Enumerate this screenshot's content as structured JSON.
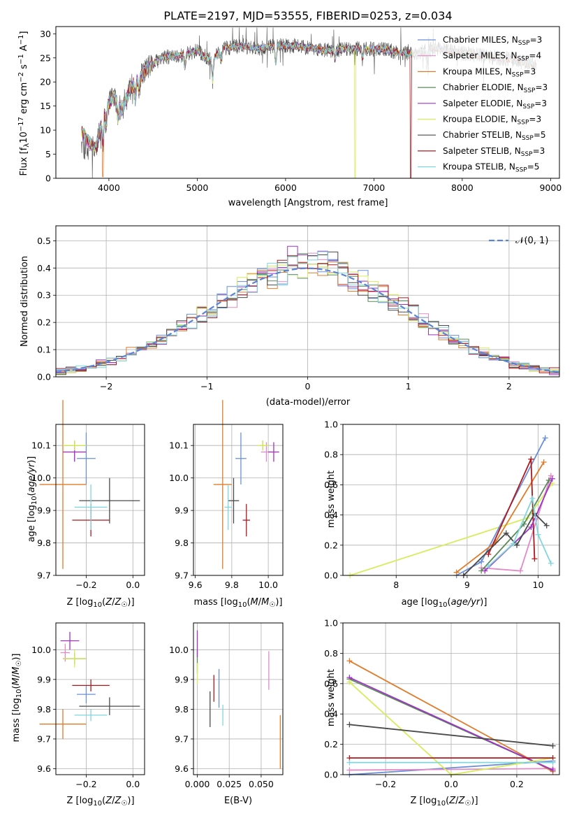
{
  "figure": {
    "title": "PLATE=2197, MJD=53555, FIBERID=0253, z=0.034"
  },
  "models": [
    {
      "name": "Chabrier MILES",
      "n_ssp": 3,
      "color": "#6a8fd8"
    },
    {
      "name": "Salpeter MILES",
      "n_ssp": 4,
      "color": "#e28ac6"
    },
    {
      "name": "Kroupa MILES",
      "n_ssp": 3,
      "color": "#e07b2a"
    },
    {
      "name": "Chabrier ELODIE",
      "n_ssp": 3,
      "color": "#5b8a5a"
    },
    {
      "name": "Salpeter ELODIE",
      "n_ssp": 3,
      "color": "#a032c8"
    },
    {
      "name": "Kroupa ELODIE",
      "n_ssp": 3,
      "color": "#d7ec5a"
    },
    {
      "name": "Chabrier STELIB",
      "n_ssp": 5,
      "color": "#4a4a4a"
    },
    {
      "name": "Salpeter STELIB",
      "n_ssp": 3,
      "color": "#b0181e"
    },
    {
      "name": "Kroupa STELIB",
      "n_ssp": 5,
      "color": "#7fd6dc"
    }
  ],
  "chart_data": [
    {
      "id": "spectrum",
      "type": "line",
      "title": "PLATE=2197, MJD=53555, FIBERID=0253, z=0.034",
      "xlabel": "wavelength [Angstrom, rest frame]",
      "ylabel": "Flux [f_λ 10^-17 erg cm^-2 s^-1 A^-1]",
      "xlim": [
        3400,
        9100
      ],
      "ylim": [
        0,
        31.5
      ],
      "xticks": [
        4000,
        5000,
        6000,
        7000,
        8000,
        9000
      ],
      "yticks": [
        0,
        5,
        10,
        15,
        20,
        25,
        30
      ],
      "legend": "upper right",
      "anchors": [
        [
          3690,
          10
        ],
        [
          3750,
          8
        ],
        [
          3850,
          6
        ],
        [
          3950,
          14
        ],
        [
          4050,
          17
        ],
        [
          4150,
          14
        ],
        [
          4250,
          19
        ],
        [
          4350,
          21
        ],
        [
          4450,
          23
        ],
        [
          4600,
          25
        ],
        [
          4800,
          25.5
        ],
        [
          5000,
          26.5
        ],
        [
          5150,
          24.5
        ],
        [
          5300,
          27
        ],
        [
          5500,
          27.5
        ],
        [
          5700,
          27
        ],
        [
          5900,
          27.5
        ],
        [
          6100,
          27.5
        ],
        [
          6300,
          27
        ],
        [
          6500,
          26.5
        ],
        [
          6700,
          27
        ],
        [
          6900,
          26.8
        ],
        [
          7100,
          26.8
        ],
        [
          7300,
          26
        ],
        [
          7500,
          26
        ],
        [
          7700,
          27
        ],
        [
          8000,
          26
        ],
        [
          8200,
          25.5
        ],
        [
          8400,
          25
        ],
        [
          8600,
          24.5
        ],
        [
          8840,
          23.5
        ]
      ],
      "dips": [
        {
          "model": "Kroupa ELODIE",
          "x": 6790,
          "y": 0
        },
        {
          "model": "Salpeter STELIB",
          "x": 7420,
          "y": 0
        },
        {
          "model": "Kroupa MILES",
          "x": 3930,
          "y": 0.3
        }
      ]
    },
    {
      "id": "residuals",
      "type": "histogram",
      "xlabel": "(data-model)/error",
      "ylabel": "Normed distribution",
      "xlim": [
        -2.5,
        2.5
      ],
      "ylim": [
        0,
        0.555
      ],
      "xticks": [
        -2,
        -1,
        0,
        1,
        2
      ],
      "yticks": [
        0,
        0.1,
        0.2,
        0.3,
        0.4,
        0.5
      ],
      "bin_width": 0.1,
      "legend": "upper right",
      "reference": {
        "label": "𝒩(0, 1)",
        "color": "#5b84d6",
        "mean": 0,
        "sigma": 1
      }
    },
    {
      "id": "age-vs-Z",
      "type": "errorbar",
      "xlabel": "Z [log10(Z/Z☉)]",
      "ylabel": "age [log10(age/yr)]",
      "xlim": [
        -0.33,
        0.05
      ],
      "ylim": [
        9.7,
        10.165
      ],
      "xticks": [
        -0.2,
        0.0
      ],
      "yticks": [
        9.7,
        9.8,
        9.9,
        10.0,
        10.1
      ],
      "points": [
        {
          "model": "Chabrier MILES",
          "x": -0.2,
          "xerr": 0.04,
          "y": 10.06,
          "yerr": 0.08
        },
        {
          "model": "Salpeter MILES",
          "x": -0.25,
          "xerr": 0.05,
          "y": 10.08,
          "yerr": 0.03
        },
        {
          "model": "Kroupa MILES",
          "x": -0.3,
          "xerr": 0.1,
          "y": 9.98,
          "yerr": 0.26
        },
        {
          "model": "Chabrier ELODIE",
          "x": -0.25,
          "xerr": 0.05,
          "y": 10.1,
          "yerr": 0.015
        },
        {
          "model": "Salpeter ELODIE",
          "x": -0.25,
          "xerr": 0.05,
          "y": 10.08,
          "yerr": 0.03
        },
        {
          "model": "Kroupa ELODIE",
          "x": -0.25,
          "xerr": 0.05,
          "y": 10.1,
          "yerr": 0.015
        },
        {
          "model": "Chabrier STELIB",
          "x": -0.1,
          "xerr": 0.13,
          "y": 9.93,
          "yerr": 0.07
        },
        {
          "model": "Salpeter STELIB",
          "x": -0.18,
          "xerr": 0.08,
          "y": 9.87,
          "yerr": 0.05
        },
        {
          "model": "Kroupa STELIB",
          "x": -0.18,
          "xerr": 0.07,
          "y": 9.91,
          "yerr": 0.07
        }
      ]
    },
    {
      "id": "age-vs-mass",
      "type": "errorbar",
      "xlabel": "mass [log10(M/M☉)]",
      "ylabel": "",
      "xlim": [
        9.59,
        10.08
      ],
      "ylim": [
        9.7,
        10.165
      ],
      "xticks": [
        9.6,
        9.8,
        10.0
      ],
      "yticks": [
        9.7,
        9.8,
        9.9,
        10.0,
        10.1
      ],
      "points": [
        {
          "model": "Chabrier MILES",
          "x": 9.85,
          "xerr": 0.03,
          "y": 10.06,
          "yerr": 0.08
        },
        {
          "model": "Salpeter MILES",
          "x": 9.99,
          "xerr": 0.03,
          "y": 10.08,
          "yerr": 0.03
        },
        {
          "model": "Kroupa MILES",
          "x": 9.75,
          "xerr": 0.05,
          "y": 9.98,
          "yerr": 0.26
        },
        {
          "model": "Chabrier ELODIE",
          "x": 9.97,
          "xerr": 0.02,
          "y": 10.1,
          "yerr": 0.015
        },
        {
          "model": "Salpeter ELODIE",
          "x": 10.03,
          "xerr": 0.03,
          "y": 10.08,
          "yerr": 0.03
        },
        {
          "model": "Kroupa ELODIE",
          "x": 9.97,
          "xerr": 0.03,
          "y": 10.1,
          "yerr": 0.015
        },
        {
          "model": "Chabrier STELIB",
          "x": 9.81,
          "xerr": 0.03,
          "y": 9.93,
          "yerr": 0.07
        },
        {
          "model": "Salpeter STELIB",
          "x": 9.88,
          "xerr": 0.02,
          "y": 9.87,
          "yerr": 0.05
        },
        {
          "model": "Kroupa STELIB",
          "x": 9.78,
          "xerr": 0.02,
          "y": 9.91,
          "yerr": 0.07
        }
      ]
    },
    {
      "id": "weight-vs-age",
      "type": "line",
      "xlabel": "age [log10(age/yr)]",
      "ylabel": "mass weight",
      "xlim": [
        7.25,
        10.3
      ],
      "ylim": [
        0,
        1.0
      ],
      "xticks": [
        8,
        9,
        10
      ],
      "yticks": [
        0,
        0.2,
        0.4,
        0.6,
        0.8,
        1.0
      ],
      "series": [
        {
          "model": "Kroupa ELODIE",
          "x": [
            7.35,
            9.85,
            10.2
          ],
          "y": [
            0.0,
            0.38,
            0.61
          ]
        },
        {
          "model": "Chabrier MILES",
          "x": [
            8.85,
            9.2,
            10.1
          ],
          "y": [
            0.0,
            0.09,
            0.91
          ]
        },
        {
          "model": "Kroupa MILES",
          "x": [
            8.85,
            9.4,
            10.08
          ],
          "y": [
            0.02,
            0.22,
            0.75
          ]
        },
        {
          "model": "Salpeter MILES",
          "x": [
            9.2,
            9.75,
            10.18
          ],
          "y": [
            0.05,
            0.03,
            0.66
          ]
        },
        {
          "model": "Salpeter STELIB",
          "x": [
            9.3,
            9.9,
            9.95
          ],
          "y": [
            0.14,
            0.77,
            0.11
          ]
        },
        {
          "model": "Chabrier ELODIE",
          "x": [
            9.2,
            9.8,
            10.15
          ],
          "y": [
            0.03,
            0.34,
            0.63
          ]
        },
        {
          "model": "Salpeter ELODIE",
          "x": [
            9.25,
            9.9,
            10.2
          ],
          "y": [
            0.03,
            0.32,
            0.64
          ]
        },
        {
          "model": "Chabrier STELIB",
          "x": [
            8.95,
            9.55,
            9.7,
            9.95,
            10.12
          ],
          "y": [
            0.0,
            0.28,
            0.2,
            0.41,
            0.33
          ]
        },
        {
          "model": "Kroupa STELIB",
          "x": [
            9.3,
            9.65,
            9.92,
            10.0,
            10.18
          ],
          "y": [
            0.06,
            0.21,
            0.51,
            0.27,
            0.08
          ]
        }
      ]
    },
    {
      "id": "mass-vs-Z",
      "type": "errorbar",
      "xlabel": "Z [log10(Z/Z☉)]",
      "ylabel": "mass [log10(M/M☉)]",
      "xlim": [
        -0.33,
        0.05
      ],
      "ylim": [
        9.58,
        10.09
      ],
      "xticks": [
        -0.2,
        0.0
      ],
      "yticks": [
        9.6,
        9.7,
        9.8,
        9.9,
        10.0
      ],
      "points": [
        {
          "model": "Chabrier MILES",
          "x": -0.2,
          "xerr": 0.04,
          "y": 9.85,
          "yerr": 0.03
        },
        {
          "model": "Salpeter MILES",
          "x": -0.29,
          "xerr": 0.02,
          "y": 9.99,
          "yerr": 0.03
        },
        {
          "model": "Kroupa MILES",
          "x": -0.3,
          "xerr": 0.1,
          "y": 9.75,
          "yerr": 0.05
        },
        {
          "model": "Chabrier ELODIE",
          "x": -0.25,
          "xerr": 0.05,
          "y": 9.97,
          "yerr": 0.02
        },
        {
          "model": "Salpeter ELODIE",
          "x": -0.27,
          "xerr": 0.04,
          "y": 10.03,
          "yerr": 0.03
        },
        {
          "model": "Kroupa ELODIE",
          "x": -0.25,
          "xerr": 0.05,
          "y": 9.97,
          "yerr": 0.03
        },
        {
          "model": "Chabrier STELIB",
          "x": -0.1,
          "xerr": 0.13,
          "y": 9.81,
          "yerr": 0.03
        },
        {
          "model": "Salpeter STELIB",
          "x": -0.18,
          "xerr": 0.08,
          "y": 9.88,
          "yerr": 0.02
        },
        {
          "model": "Kroupa STELIB",
          "x": -0.18,
          "xerr": 0.07,
          "y": 9.78,
          "yerr": 0.02
        }
      ]
    },
    {
      "id": "mass-vs-ebv",
      "type": "errorbar",
      "xlabel": "E(B-V)",
      "ylabel": "",
      "xlim": [
        -0.003,
        0.067
      ],
      "ylim": [
        9.58,
        10.09
      ],
      "xticks": [
        0.0,
        0.025,
        0.05
      ],
      "xtick_labels": [
        "0.000",
        "0.025",
        "0.050"
      ],
      "yticks": [
        9.6,
        9.7,
        9.8,
        9.9,
        10.0
      ],
      "points": [
        {
          "model": "Chabrier MILES",
          "x": 0.017,
          "xerr": 0.0,
          "y": 9.87,
          "yerr": 0.065
        },
        {
          "model": "Salpeter MILES",
          "x": 0.056,
          "xerr": 0.0,
          "y": 9.93,
          "yerr": 0.065
        },
        {
          "model": "Kroupa MILES",
          "x": 0.065,
          "xerr": 0.0,
          "y": 9.69,
          "yerr": 0.09
        },
        {
          "model": "Chabrier ELODIE",
          "x": 0.0,
          "xerr": 0.0,
          "y": 9.96,
          "yerr": 0.04
        },
        {
          "model": "Salpeter ELODIE",
          "x": 0.0,
          "xerr": 0.0,
          "y": 10.02,
          "yerr": 0.045
        },
        {
          "model": "Kroupa ELODIE",
          "x": 0.0,
          "xerr": 0.0,
          "y": 9.92,
          "yerr": 0.035
        },
        {
          "model": "Chabrier STELIB",
          "x": 0.01,
          "xerr": 0.0,
          "y": 9.8,
          "yerr": 0.06
        },
        {
          "model": "Salpeter STELIB",
          "x": 0.013,
          "xerr": 0.0,
          "y": 9.87,
          "yerr": 0.045
        },
        {
          "model": "Kroupa STELIB",
          "x": 0.02,
          "xerr": 0.0,
          "y": 9.78,
          "yerr": 0.035
        }
      ]
    },
    {
      "id": "weight-vs-Z",
      "type": "line",
      "xlabel": "Z [log10(Z/Z☉)]",
      "ylabel": "mass weight",
      "xlim": [
        -0.33,
        0.33
      ],
      "ylim": [
        0,
        1.0
      ],
      "xticks": [
        -0.2,
        0.0,
        0.2
      ],
      "yticks": [
        0,
        0.2,
        0.4,
        0.6,
        0.8,
        1.0
      ],
      "series": [
        {
          "model": "Chabrier MILES",
          "x": [
            -0.31,
            0.31
          ],
          "y": [
            0.0,
            0.09
          ]
        },
        {
          "model": "Salpeter MILES",
          "x": [
            -0.31,
            0.31
          ],
          "y": [
            0.03,
            0.04
          ]
        },
        {
          "model": "Kroupa MILES",
          "x": [
            -0.31,
            0.31
          ],
          "y": [
            0.75,
            0.02
          ]
        },
        {
          "model": "Chabrier ELODIE",
          "x": [
            -0.31,
            0.31
          ],
          "y": [
            0.63,
            0.03
          ]
        },
        {
          "model": "Salpeter ELODIE",
          "x": [
            -0.31,
            0.31
          ],
          "y": [
            0.64,
            0.03
          ]
        },
        {
          "model": "Kroupa ELODIE",
          "x": [
            -0.31,
            0.0,
            0.31
          ],
          "y": [
            0.61,
            0.0,
            0.11
          ]
        },
        {
          "model": "Chabrier STELIB",
          "x": [
            -0.31,
            0.31
          ],
          "y": [
            0.33,
            0.19
          ]
        },
        {
          "model": "Salpeter STELIB",
          "x": [
            -0.31,
            0.31
          ],
          "y": [
            0.11,
            0.11
          ]
        },
        {
          "model": "Kroupa STELIB",
          "x": [
            -0.31,
            0.31
          ],
          "y": [
            0.08,
            0.08
          ]
        }
      ]
    }
  ]
}
